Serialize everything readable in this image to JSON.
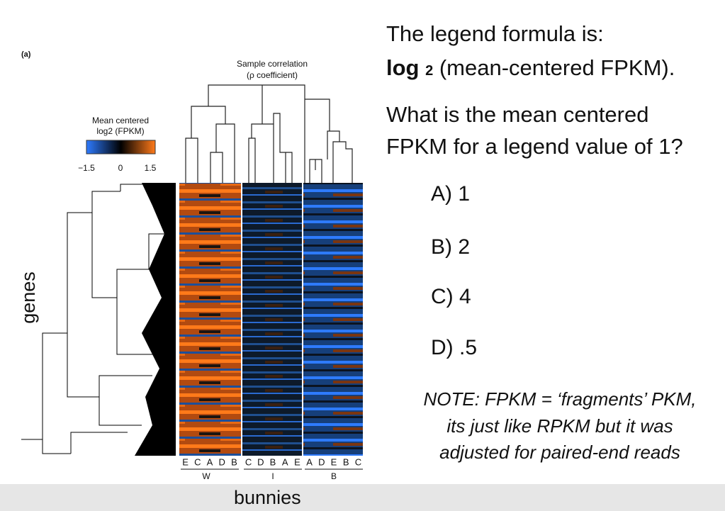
{
  "figure": {
    "panel_label": "(a)",
    "dendrogram_title": [
      "Sample correlation",
      "(ρ coefficient)"
    ],
    "legend": {
      "title": [
        "Mean centered",
        "log2 (FPKM)"
      ],
      "ticks": [
        "−1.5",
        "0",
        "1.5"
      ]
    },
    "y_label": "genes",
    "groups": [
      {
        "name": "W",
        "samples": [
          "E",
          "C",
          "A",
          "D",
          "B"
        ]
      },
      {
        "name": "I",
        "samples": [
          "C",
          "D",
          "B",
          "A",
          "E"
        ]
      },
      {
        "name": "B",
        "samples": [
          "A",
          "D",
          "E",
          "B",
          "C"
        ]
      }
    ],
    "x_label": "bunnies"
  },
  "question": {
    "formula_intro": "The legend formula is:",
    "formula_bold": "log",
    "formula_sub": "2",
    "formula_rest": " (mean-centered FPKM).",
    "prompt": [
      "What is the mean centered",
      "FPKM for a legend value of 1?"
    ],
    "options": [
      "A) 1",
      "B) 2",
      "C) 4",
      "D) .5"
    ],
    "note": [
      "NOTE: FPKM = ‘fragments’ PKM,",
      "its just like RPKM but it was",
      "adjusted for paired-end reads"
    ]
  }
}
